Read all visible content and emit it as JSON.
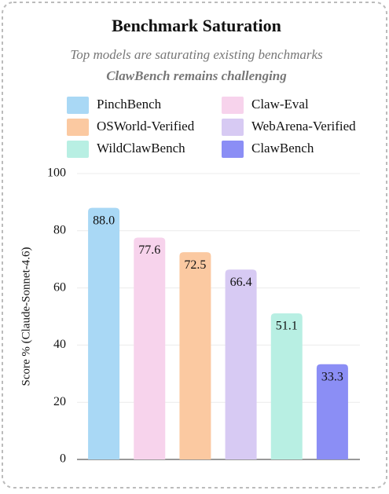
{
  "chart_data": {
    "type": "bar",
    "title": "Benchmark Saturation",
    "subtitle": "Top models are saturating existing benchmarks",
    "subtitle2": "ClawBench remains challenging",
    "y_label": "Score % (Claude-Sonnet-4.6)",
    "categories": [
      "PinchBench",
      "Claw-Eval",
      "OSWorld-Verified",
      "WebArena-Verified",
      "WildClawBench",
      "ClawBench"
    ],
    "values": [
      88.0,
      77.6,
      72.5,
      66.4,
      51.1,
      33.3
    ],
    "value_labels": [
      "88.0",
      "77.6",
      "72.5",
      "66.4",
      "51.1",
      "33.3"
    ],
    "colors": [
      "#a9d8f5",
      "#f7d3ec",
      "#fbc9a1",
      "#d7caf3",
      "#b8efe3",
      "#8b8ef5"
    ],
    "ylim": [
      0,
      100
    ],
    "yticks": [
      0,
      20,
      40,
      60,
      80,
      100
    ],
    "grid": true
  }
}
